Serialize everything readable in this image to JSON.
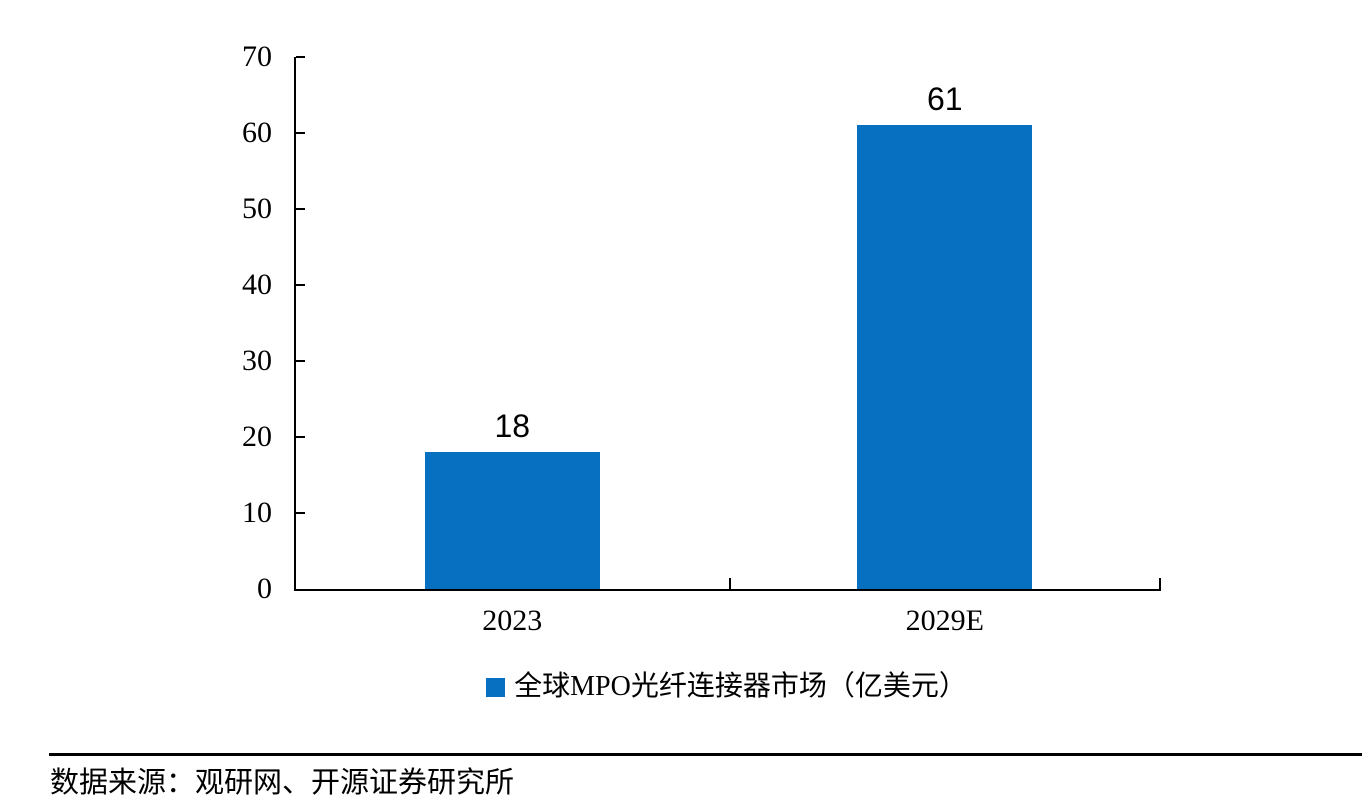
{
  "chart_data": {
    "type": "bar",
    "categories": [
      "2023",
      "2029E"
    ],
    "values": [
      18,
      61
    ],
    "data_labels": [
      "18",
      "61"
    ],
    "series_name": "全球MPO光纤连接器市场（亿美元）",
    "title": "",
    "xlabel": "",
    "ylabel": "",
    "ylim": [
      0,
      70
    ],
    "yticks": [
      0,
      10,
      20,
      30,
      40,
      50,
      60,
      70
    ],
    "bar_color": "#0870C0",
    "axis_color": "#000000",
    "grid": false,
    "legend_position": "bottom-center"
  },
  "legend": {
    "marker": "square-icon",
    "marker_color": "#0870C0"
  },
  "footer": {
    "source": "数据来源：观研网、开源证券研究所"
  }
}
